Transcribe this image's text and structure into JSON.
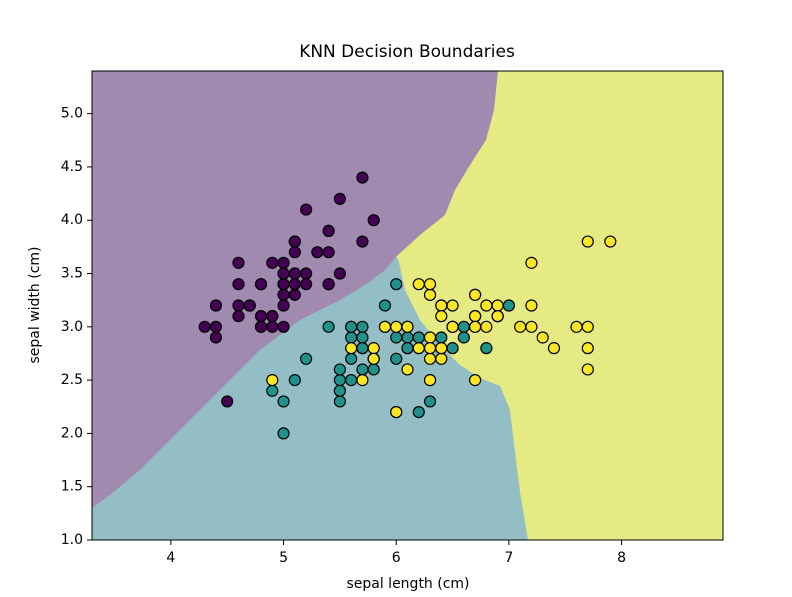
{
  "chart_data": {
    "type": "scatter",
    "title": "KNN Decision Boundaries",
    "x_label": "sepal length (cm)",
    "y_label": "sepal width (cm)",
    "xlim": [
      3.3,
      8.9
    ],
    "ylim": [
      1.0,
      5.4
    ],
    "xticks": [
      4,
      5,
      6,
      7,
      8
    ],
    "yticks": [
      {
        "value": 1.0,
        "label": "1.0"
      },
      1.5,
      {
        "value": 2.0,
        "label": "2.0"
      },
      2.5,
      {
        "value": 3.0,
        "label": "3.0"
      },
      3.5,
      {
        "value": 4.0,
        "label": "4.0"
      },
      4.5,
      {
        "value": 5.0,
        "label": "5.0"
      }
    ],
    "grid": false,
    "series": [
      {
        "color": "#440154",
        "x": [
          5.1,
          4.9,
          4.7,
          4.6,
          5.0,
          5.4,
          4.6,
          5.0,
          4.4,
          4.9,
          5.4,
          4.8,
          4.8,
          4.3,
          5.8,
          5.7,
          5.4,
          5.1,
          5.7,
          5.1,
          5.4,
          5.1,
          4.6,
          5.1,
          4.8,
          5.0,
          5.0,
          5.2,
          5.2,
          4.7,
          4.8,
          5.4,
          5.2,
          5.5,
          4.9,
          5.0,
          5.5,
          4.9,
          4.4,
          5.1,
          5.0,
          4.5,
          4.4,
          5.0,
          5.1,
          4.8,
          5.1,
          4.6,
          5.3,
          5.0
        ],
        "values": [
          3.5,
          3.0,
          3.2,
          3.1,
          3.6,
          3.9,
          3.4,
          3.4,
          2.9,
          3.1,
          3.7,
          3.4,
          3.0,
          3.0,
          4.0,
          4.4,
          3.9,
          3.5,
          3.8,
          3.8,
          3.4,
          3.7,
          3.6,
          3.3,
          3.4,
          3.0,
          3.4,
          3.5,
          3.4,
          3.2,
          3.1,
          3.4,
          4.1,
          4.2,
          3.1,
          3.2,
          3.5,
          3.6,
          3.0,
          3.4,
          3.5,
          2.3,
          3.2,
          3.5,
          3.8,
          3.0,
          3.8,
          3.2,
          3.7,
          3.3
        ]
      },
      {
        "color": "#21918c",
        "x": [
          7.0,
          6.4,
          6.9,
          5.5,
          6.5,
          5.7,
          6.3,
          4.9,
          6.6,
          5.2,
          5.0,
          5.9,
          6.0,
          6.1,
          5.6,
          6.7,
          5.6,
          5.8,
          6.2,
          5.6,
          5.9,
          6.1,
          6.3,
          6.1,
          6.4,
          6.6,
          6.8,
          6.7,
          6.0,
          5.7,
          5.5,
          5.5,
          5.8,
          6.0,
          5.4,
          6.0,
          6.7,
          6.3,
          5.6,
          5.5,
          5.5,
          6.1,
          5.8,
          5.0,
          5.6,
          5.7,
          5.7,
          6.2,
          5.1,
          5.7
        ],
        "values": [
          3.2,
          3.2,
          3.1,
          2.3,
          2.8,
          2.8,
          3.3,
          2.4,
          2.9,
          2.7,
          2.0,
          3.0,
          2.2,
          2.9,
          2.9,
          3.1,
          3.0,
          2.7,
          2.2,
          2.5,
          3.2,
          2.8,
          2.5,
          2.8,
          2.9,
          3.0,
          2.8,
          3.0,
          2.9,
          2.6,
          2.4,
          2.4,
          2.7,
          2.7,
          3.0,
          3.4,
          3.1,
          2.3,
          3.0,
          2.5,
          2.6,
          3.0,
          2.6,
          2.3,
          2.7,
          3.0,
          2.9,
          2.9,
          2.5,
          2.8
        ]
      },
      {
        "color": "#fde725",
        "x": [
          6.3,
          5.8,
          7.1,
          6.3,
          6.5,
          7.6,
          4.9,
          7.3,
          6.7,
          7.2,
          6.5,
          6.4,
          6.8,
          5.7,
          5.8,
          6.4,
          6.5,
          7.7,
          7.7,
          6.0,
          6.9,
          5.6,
          7.7,
          6.3,
          6.7,
          7.2,
          6.2,
          6.1,
          6.4,
          7.2,
          7.4,
          7.9,
          6.4,
          6.3,
          6.1,
          7.7,
          6.3,
          6.4,
          6.0,
          6.9,
          6.7,
          6.9,
          5.8,
          6.8,
          6.7,
          6.7,
          6.3,
          6.5,
          6.2,
          5.9
        ],
        "values": [
          3.3,
          2.7,
          3.0,
          2.9,
          3.0,
          3.0,
          2.5,
          2.9,
          2.5,
          3.6,
          3.2,
          2.7,
          3.0,
          2.5,
          2.8,
          3.2,
          3.0,
          3.8,
          2.6,
          2.2,
          3.2,
          2.8,
          2.8,
          2.7,
          3.3,
          3.2,
          2.8,
          3.0,
          2.8,
          3.0,
          2.8,
          3.8,
          2.8,
          2.8,
          2.6,
          3.0,
          3.4,
          3.1,
          3.0,
          3.1,
          3.1,
          3.1,
          2.7,
          3.2,
          3.3,
          3.0,
          2.5,
          3.0,
          3.4,
          3.0
        ]
      }
    ]
  }
}
